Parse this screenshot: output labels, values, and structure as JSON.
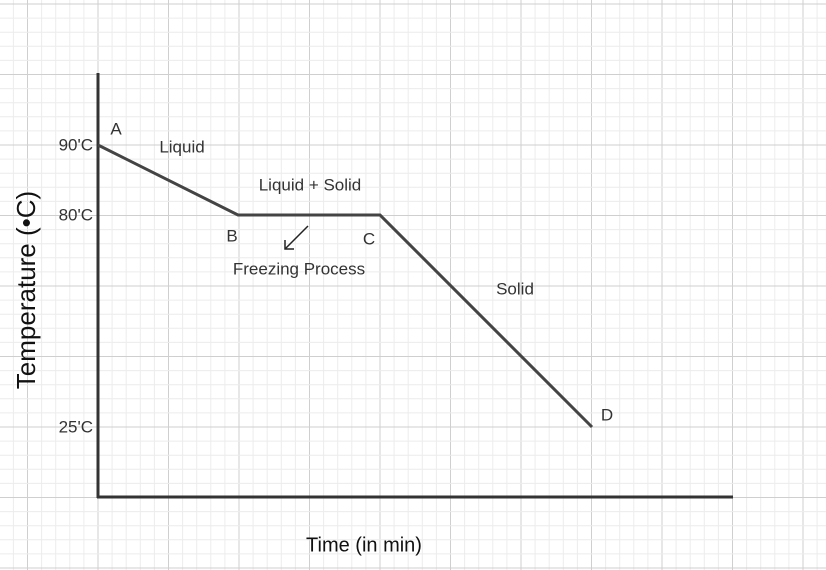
{
  "axes": {
    "y_title": "Temperature (•C)",
    "x_title": "Time (in min)",
    "y_labels": [
      "90'C",
      "80'C",
      "25'C"
    ]
  },
  "points": [
    "A",
    "B",
    "C",
    "D"
  ],
  "phases": [
    "Liquid",
    "Liquid + Solid",
    "Solid"
  ],
  "annotation": "Freezing Process"
}
